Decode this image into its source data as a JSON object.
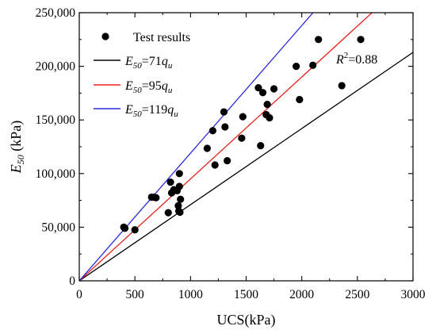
{
  "chart_data": {
    "type": "scatter",
    "title": "",
    "xlabel": "UCS(kPa)",
    "ylabel": {
      "main": "E",
      "sub": "50",
      "unit": " (kPa)"
    },
    "xlim": [
      0,
      3000
    ],
    "ylim": [
      0,
      250000
    ],
    "x_ticks": [
      0,
      500,
      1000,
      1500,
      2000,
      2500,
      3000
    ],
    "y_ticks": [
      0,
      50000,
      100000,
      150000,
      200000,
      250000
    ],
    "x_tick_labels": [
      "0",
      "500",
      "1000",
      "1500",
      "2000",
      "2500",
      "3000"
    ],
    "y_tick_labels": [
      "0",
      "50,000",
      "100,000",
      "150,000",
      "200,000",
      "250,000"
    ],
    "grid": false,
    "legend_position": "top-left",
    "series": [
      {
        "name": "Test results",
        "kind": "points",
        "color": "#000000",
        "points": [
          [
            400,
            50000
          ],
          [
            410,
            49000
          ],
          [
            500,
            47500
          ],
          [
            650,
            78000
          ],
          [
            670,
            78000
          ],
          [
            690,
            77500
          ],
          [
            800,
            63500
          ],
          [
            820,
            92000
          ],
          [
            830,
            82000
          ],
          [
            850,
            85000
          ],
          [
            880,
            84000
          ],
          [
            890,
            70000
          ],
          [
            895,
            65000
          ],
          [
            900,
            100000
          ],
          [
            900,
            88000
          ],
          [
            905,
            64000
          ],
          [
            910,
            76000
          ],
          [
            1150,
            123500
          ],
          [
            1200,
            140000
          ],
          [
            1220,
            108000
          ],
          [
            1300,
            157500
          ],
          [
            1310,
            143500
          ],
          [
            1330,
            112000
          ],
          [
            1460,
            133000
          ],
          [
            1470,
            153000
          ],
          [
            1610,
            180000
          ],
          [
            1630,
            126000
          ],
          [
            1650,
            175500
          ],
          [
            1680,
            155000
          ],
          [
            1690,
            164500
          ],
          [
            1710,
            152000
          ],
          [
            1750,
            179000
          ],
          [
            1950,
            200000
          ],
          [
            1980,
            169000
          ],
          [
            2100,
            201000
          ],
          [
            2150,
            225000
          ],
          [
            2360,
            182000
          ],
          [
            2530,
            225000
          ]
        ]
      },
      {
        "name": "E50=71qu",
        "kind": "line",
        "color": "#000000",
        "slope": 71,
        "legend": {
          "main": "E",
          "sub": "50",
          "mid": "=71",
          "var": "q",
          "varsub": "u"
        }
      },
      {
        "name": "E50=95qu",
        "kind": "line",
        "color": "#e8221c",
        "slope": 95,
        "legend": {
          "main": "E",
          "sub": "50",
          "mid": "=95",
          "var": "q",
          "varsub": "u"
        }
      },
      {
        "name": "E50=119qu",
        "kind": "line",
        "color": "#2a2ad8",
        "slope": 119,
        "legend": {
          "main": "E",
          "sub": "50",
          "mid": "=119",
          "var": "q",
          "varsub": "u"
        }
      }
    ],
    "annotation": {
      "main": "R",
      "sup": "2",
      "rest": "=0.88"
    }
  }
}
